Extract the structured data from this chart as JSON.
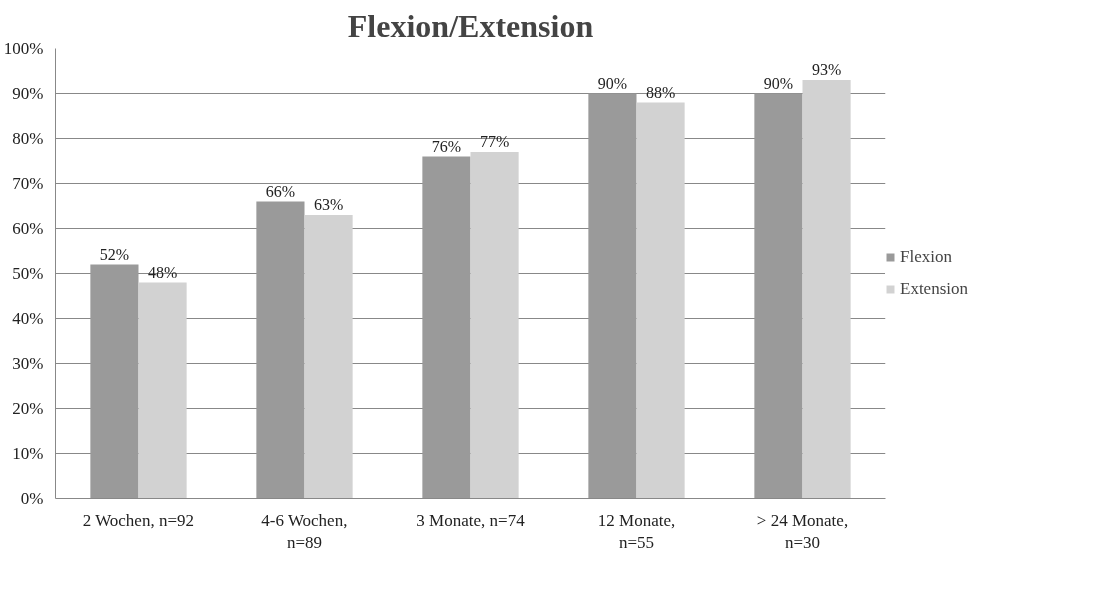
{
  "chart_data": {
    "type": "bar",
    "title": "Flexion/Extension",
    "categories": [
      "2 Wochen, n=92",
      "4-6 Wochen, n=89",
      "3 Monate, n=74",
      "12 Monate, n=55",
      "> 24 Monate, n=30"
    ],
    "series": [
      {
        "name": "Flexion",
        "color": "#9a9a9a",
        "values": [
          52,
          66,
          76,
          90,
          90
        ],
        "value_labels": [
          "52%",
          "66%",
          "76%",
          "90%",
          "90%"
        ]
      },
      {
        "name": "Extension",
        "color": "#d2d2d2",
        "values": [
          48,
          63,
          77,
          88,
          93
        ],
        "value_labels": [
          "48%",
          "63%",
          "77%",
          "88%",
          "93%"
        ]
      }
    ],
    "ylim": [
      0,
      100
    ],
    "yticks": [
      {
        "value": 0,
        "label": "0%"
      },
      {
        "value": 10,
        "label": "10%"
      },
      {
        "value": 20,
        "label": "20%"
      },
      {
        "value": 30,
        "label": "30%"
      },
      {
        "value": 40,
        "label": "40%"
      },
      {
        "value": 50,
        "label": "50%"
      },
      {
        "value": 60,
        "label": "60%"
      },
      {
        "value": 70,
        "label": "70%"
      },
      {
        "value": 80,
        "label": "80%"
      },
      {
        "value": 90,
        "label": "90%"
      },
      {
        "value": 100,
        "label": "100%"
      }
    ],
    "grid": "y",
    "legend": "right"
  }
}
